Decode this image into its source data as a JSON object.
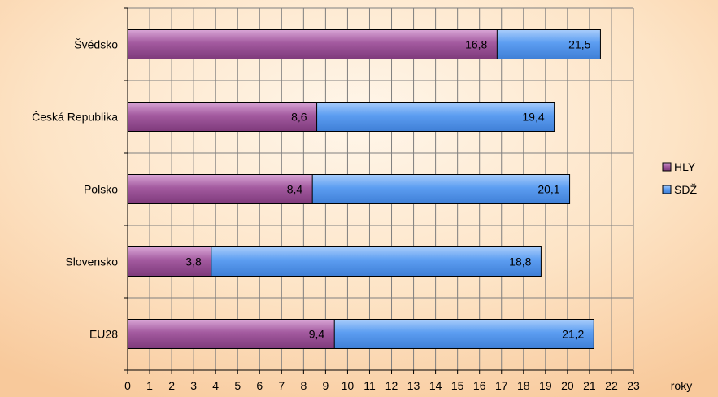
{
  "chart_data": {
    "type": "bar",
    "orientation": "horizontal",
    "stacked": false,
    "categories": [
      "Švédsko",
      "Česká Republika",
      "Polsko",
      "Slovensko",
      "EU28"
    ],
    "series": [
      {
        "name": "HLY",
        "values": [
          16.8,
          8.6,
          8.4,
          3.8,
          9.4
        ],
        "labels": [
          "16,8",
          "8,6",
          "8,4",
          "3,8",
          "9,4"
        ],
        "color": "#9b4f96"
      },
      {
        "name": "SDŽ",
        "values": [
          21.5,
          19.4,
          20.1,
          18.8,
          21.2
        ],
        "labels": [
          "21,5",
          "19,4",
          "20,1",
          "18,8",
          "21,2"
        ],
        "color": "#5b9bf0"
      }
    ],
    "xlabel": "roky",
    "xlim": [
      0,
      23
    ],
    "xticks": [
      "0",
      "1",
      "2",
      "3",
      "4",
      "5",
      "6",
      "7",
      "8",
      "9",
      "10",
      "11",
      "12",
      "13",
      "14",
      "15",
      "16",
      "17",
      "18",
      "19",
      "20",
      "21",
      "22",
      "23"
    ],
    "grid": true,
    "legend_position": "right"
  }
}
